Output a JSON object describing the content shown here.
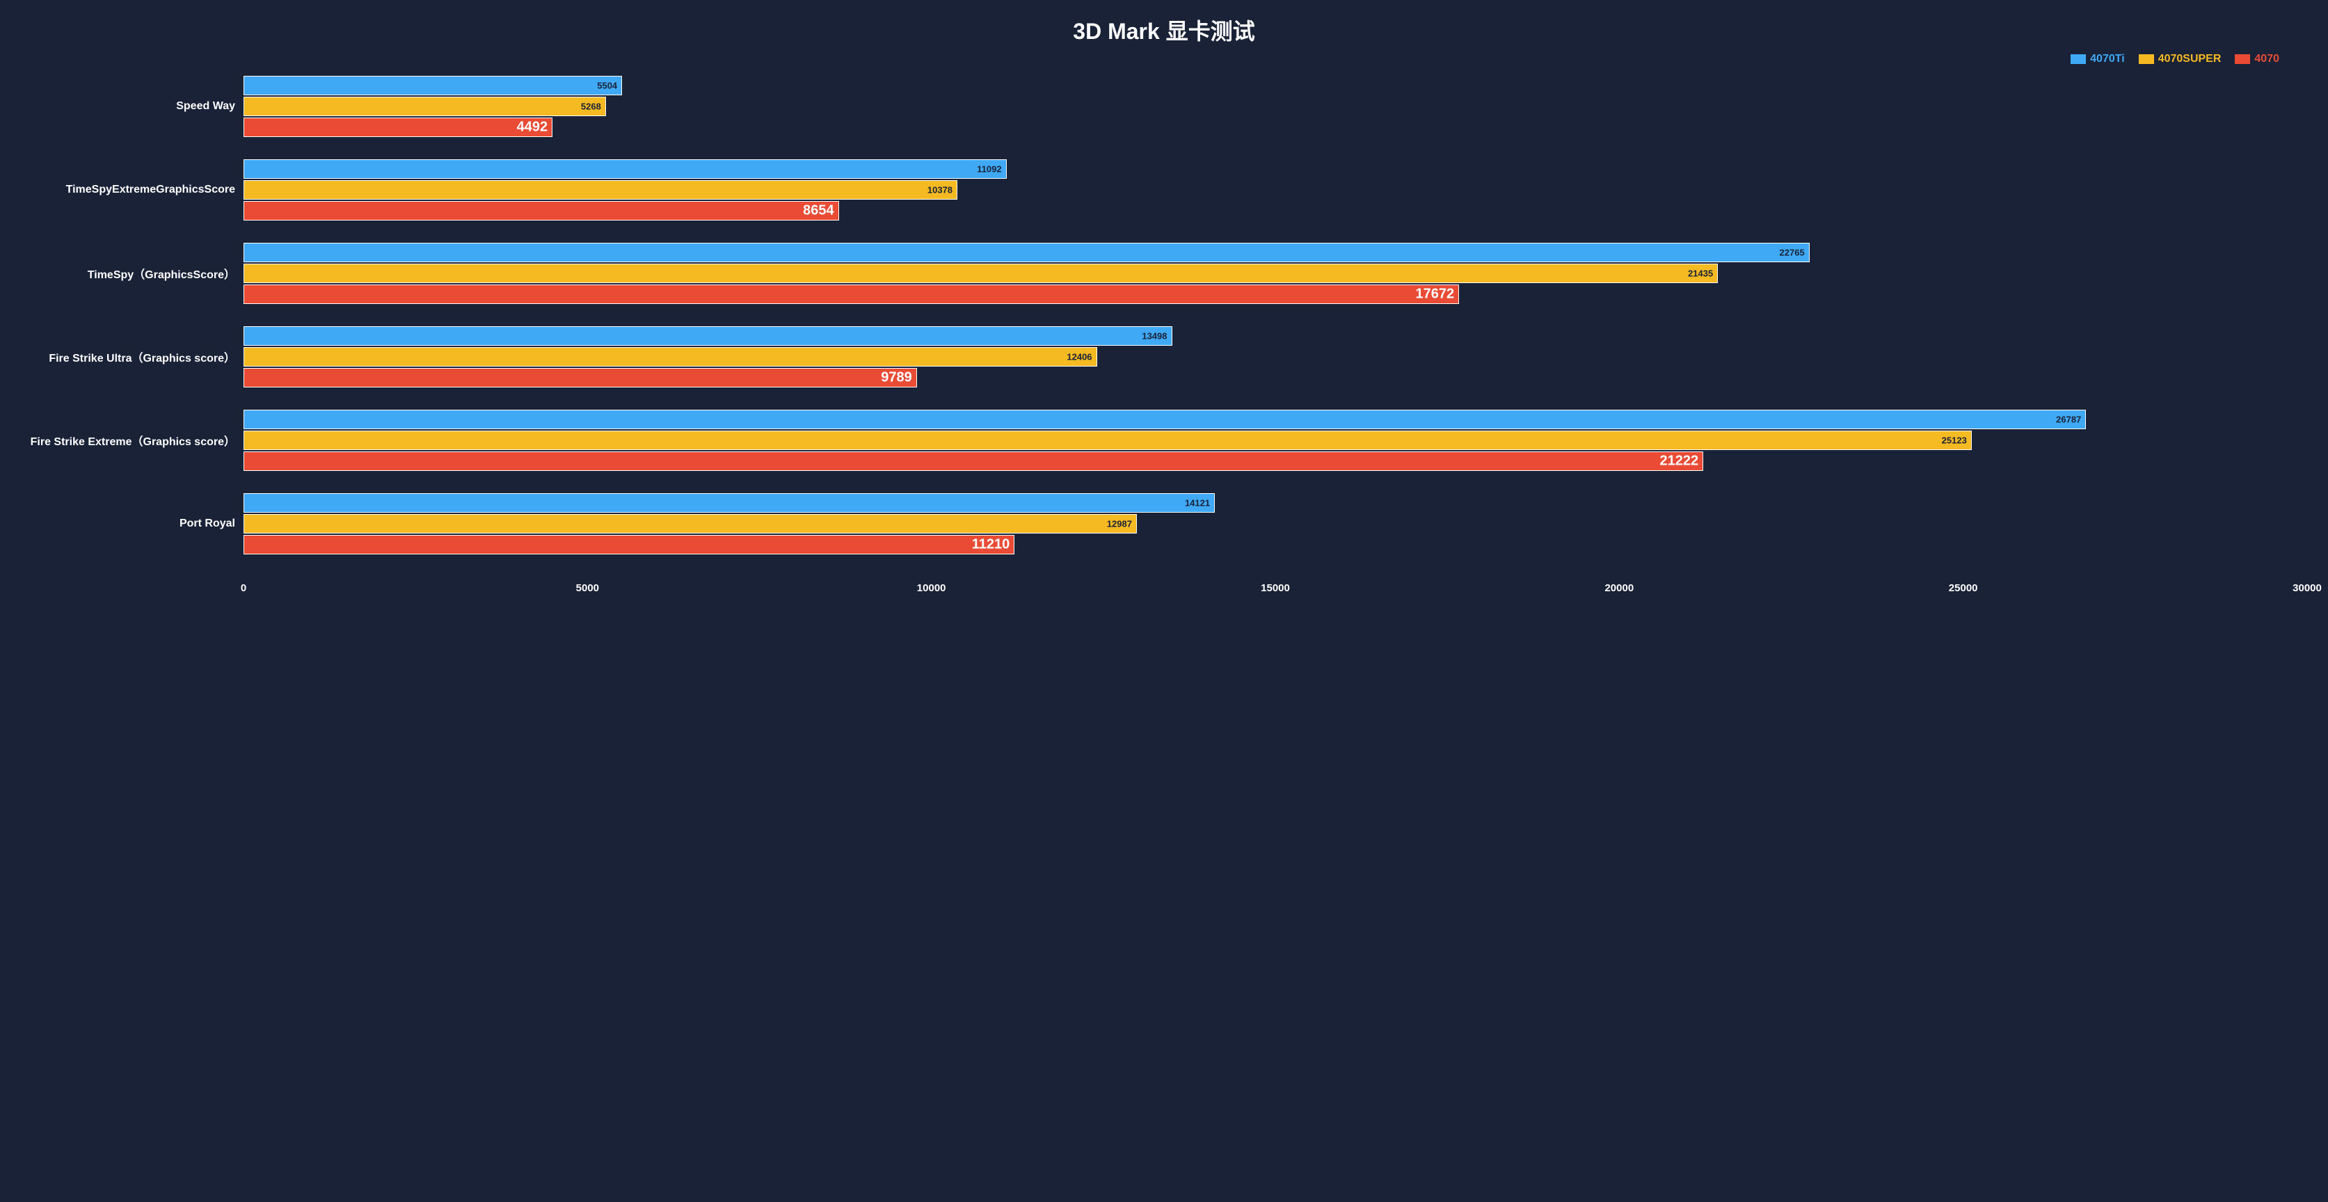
{
  "chart": {
    "type": "grouped-horizontal-bar",
    "title": "3D  Mark 显卡测试",
    "background_color": "#1a2238",
    "text_color": "#ffffff",
    "title_fontsize": 32,
    "label_fontsize": 16,
    "tick_fontsize": 15,
    "small_value_fontsize": 13,
    "big_value_fontsize": 20,
    "bar_border_color": "#ffffff",
    "xlim": [
      0,
      30000
    ],
    "xtick_step": 5000,
    "xticks": [
      "0",
      "5000",
      "10000",
      "15000",
      "20000",
      "25000",
      "30000"
    ],
    "series": [
      {
        "name": "4070Ti",
        "color": "#3fa9f5",
        "label_color": "#1a2238"
      },
      {
        "name": "4070SUPER",
        "color": "#f5b921",
        "label_color": "#1a2238"
      },
      {
        "name": "4070",
        "color": "#e94b35",
        "label_color": "#ffffff",
        "big_label": true
      }
    ],
    "categories": [
      {
        "label": "Speed Way",
        "values": [
          5504,
          5268,
          4492
        ]
      },
      {
        "label": "TimeSpyExtremeGraphicsScore",
        "values": [
          11092,
          10378,
          8654
        ]
      },
      {
        "label": "TimeSpy（GraphicsScore）",
        "values": [
          22765,
          21435,
          17672
        ]
      },
      {
        "label": "Fire Strike Ultra（Graphics score）",
        "values": [
          13498,
          12406,
          9789
        ]
      },
      {
        "label": "Fire Strike Extreme（Graphics score）",
        "values": [
          26787,
          25123,
          21222
        ]
      },
      {
        "label": "Port Royal",
        "values": [
          14121,
          12987,
          11210
        ]
      }
    ]
  }
}
